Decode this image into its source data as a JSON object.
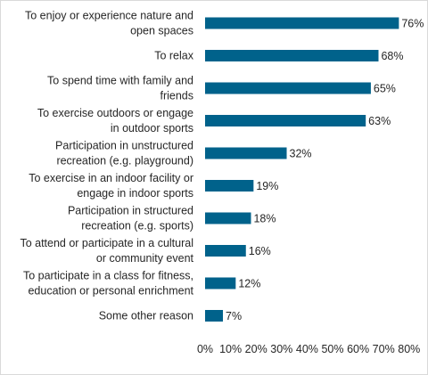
{
  "chart_data": {
    "type": "bar",
    "orientation": "horizontal",
    "categories": [
      [
        "To enjoy or experience nature and",
        "open spaces"
      ],
      [
        "To relax"
      ],
      [
        "To spend time with family and",
        "friends"
      ],
      [
        "To exercise outdoors or engage",
        "in outdoor sports"
      ],
      [
        "Participation in unstructured",
        "recreation (e.g. playground)"
      ],
      [
        "To exercise in an indoor facility or",
        "engage in indoor sports"
      ],
      [
        "Participation in structured",
        "recreation (e.g. sports)"
      ],
      [
        "To attend or participate in a cultural",
        "or community event"
      ],
      [
        "To participate in a class for fitness,",
        "education or personal enrichment"
      ],
      [
        "Some other reason"
      ]
    ],
    "values": [
      76,
      68,
      65,
      63,
      32,
      19,
      18,
      16,
      12,
      7
    ],
    "value_labels": [
      "76%",
      "68%",
      "65%",
      "63%",
      "32%",
      "19%",
      "18%",
      "16%",
      "12%",
      "7%"
    ],
    "xlim": [
      0,
      80
    ],
    "xticks": [
      0,
      10,
      20,
      30,
      40,
      50,
      60,
      70,
      80
    ],
    "xtick_labels": [
      "0%",
      "10%",
      "20%",
      "30%",
      "40%",
      "50%",
      "60%",
      "70%",
      "80%"
    ],
    "grid": false,
    "bar_color": "#00628b",
    "text_color": "#262626"
  }
}
